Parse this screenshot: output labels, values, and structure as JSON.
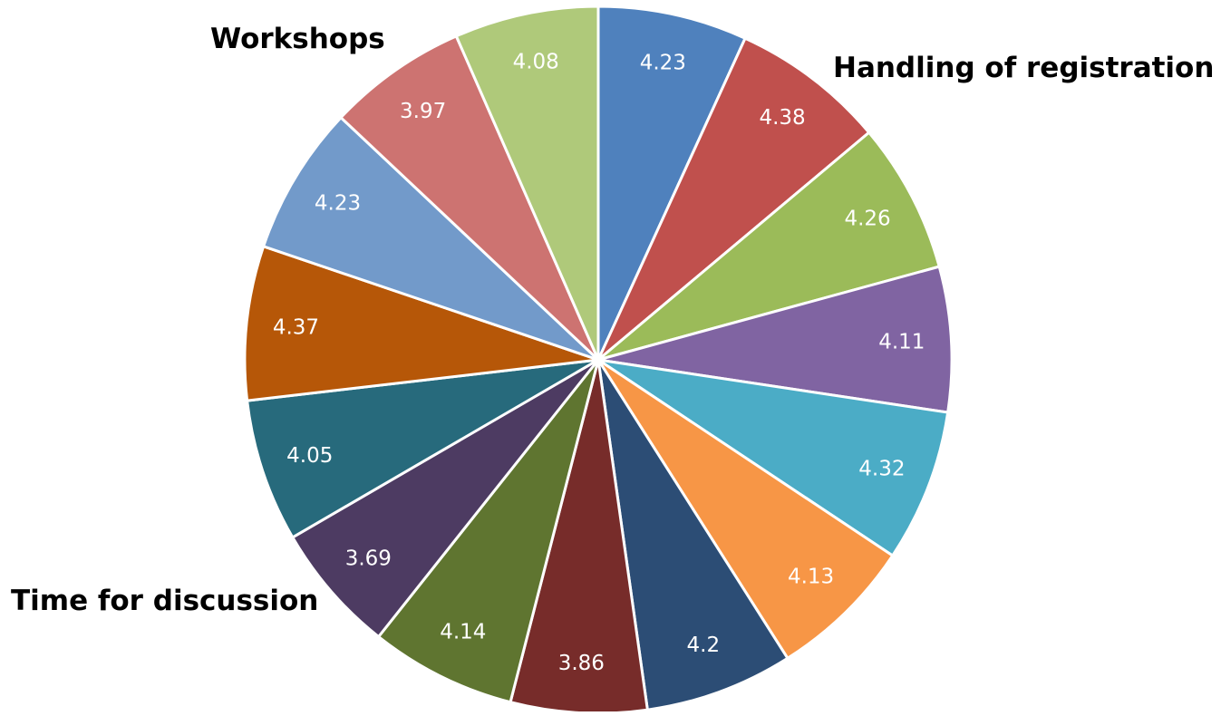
{
  "chart_data": {
    "type": "pie",
    "start": "12 o'clock",
    "direction": "clockwise",
    "values": [
      4.23,
      4.38,
      4.26,
      4.11,
      4.32,
      4.13,
      4.2,
      3.86,
      4.14,
      3.69,
      4.05,
      4.37,
      4.23,
      3.97,
      4.08
    ],
    "labels": [
      "4.23",
      "4.38",
      "4.26",
      "4.11",
      "4.32",
      "4.13",
      "4.2",
      "3.86",
      "4.14",
      "3.69",
      "4.05",
      "4.37",
      "4.23",
      "3.97",
      "4.08"
    ],
    "colors": [
      "#4F81BD",
      "#C0504D",
      "#9BBB59",
      "#8064A2",
      "#4BACC6",
      "#F79646",
      "#2C4D75",
      "#772C2A",
      "#5F7530",
      "#4D3B62",
      "#276A7C",
      "#B65708",
      "#729ACA",
      "#CD7371",
      "#AFC97A"
    ],
    "category_labels": {
      "workshops": "Workshops",
      "handling_of_registration": "Handling of registration",
      "time_for_discussion": "Time for discussion"
    }
  }
}
